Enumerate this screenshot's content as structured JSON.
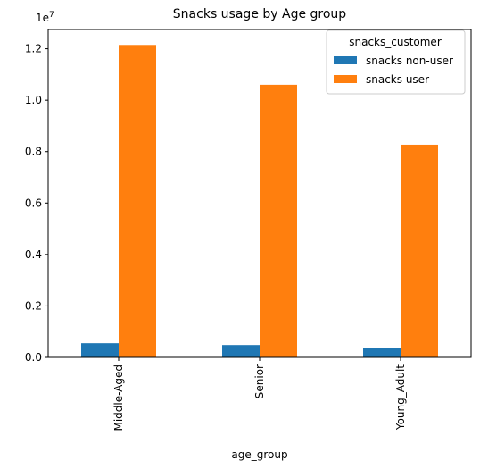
{
  "chart_data": {
    "type": "bar",
    "title": "Snacks usage by Age group",
    "xlabel": "age_group",
    "ylabel": "",
    "y_offset_label": "1e7",
    "categories": [
      "Middle-Aged",
      "Senior",
      "Young_Adult"
    ],
    "series": [
      {
        "name": "snacks non-user",
        "color": "#1f77b4",
        "values": [
          550000,
          480000,
          360000
        ]
      },
      {
        "name": "snacks user",
        "color": "#ff7f0e",
        "values": [
          12150000,
          10600000,
          8270000
        ]
      }
    ],
    "ylim": [
      0,
      12750000
    ],
    "y_ticks": [
      {
        "value": 0,
        "label": "0.0"
      },
      {
        "value": 2000000,
        "label": "0.2"
      },
      {
        "value": 4000000,
        "label": "0.4"
      },
      {
        "value": 6000000,
        "label": "0.6"
      },
      {
        "value": 8000000,
        "label": "0.8"
      },
      {
        "value": 10000000,
        "label": "1.0"
      },
      {
        "value": 12000000,
        "label": "1.2"
      }
    ],
    "legend": {
      "title": "snacks_customer",
      "position": "top-right"
    },
    "grid": false
  }
}
